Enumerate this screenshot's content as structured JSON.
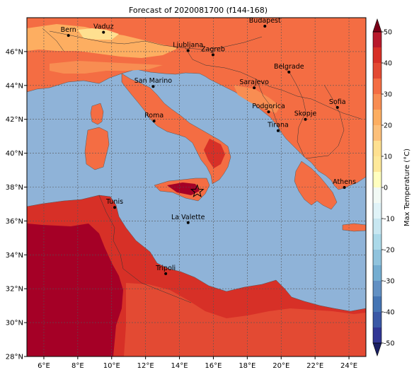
{
  "figure": {
    "title": "Forecast of 2020081700 (f144-168)"
  },
  "map": {
    "lon_range": [
      5,
      25
    ],
    "lat_range": [
      28,
      48
    ],
    "lon_ticks": [
      {
        "value": 6,
        "label": "6°E"
      },
      {
        "value": 8,
        "label": "8°E"
      },
      {
        "value": 10,
        "label": "10°E"
      },
      {
        "value": 12,
        "label": "12°E"
      },
      {
        "value": 14,
        "label": "14°E"
      },
      {
        "value": 16,
        "label": "16°E"
      },
      {
        "value": 18,
        "label": "18°E"
      },
      {
        "value": 20,
        "label": "20°E"
      },
      {
        "value": 22,
        "label": "22°E"
      },
      {
        "value": 24,
        "label": "24°E"
      }
    ],
    "lat_ticks": [
      {
        "value": 28,
        "label": "28°N"
      },
      {
        "value": 30,
        "label": "30°N"
      },
      {
        "value": 32,
        "label": "32°N"
      },
      {
        "value": 34,
        "label": "34°N"
      },
      {
        "value": 36,
        "label": "36°N"
      },
      {
        "value": 38,
        "label": "38°N"
      },
      {
        "value": 40,
        "label": "40°N"
      },
      {
        "value": 42,
        "label": "42°N"
      },
      {
        "value": 44,
        "label": "44°N"
      },
      {
        "value": 46,
        "label": "46°N"
      }
    ],
    "gridlines": true,
    "sea_color": "#8fb3d8",
    "cities": [
      {
        "name": "Bern",
        "lon": 7.45,
        "lat": 46.95
      },
      {
        "name": "Vaduz",
        "lon": 9.52,
        "lat": 47.14
      },
      {
        "name": "Budapest",
        "lon": 19.04,
        "lat": 47.5
      },
      {
        "name": "Ljubljana",
        "lon": 14.51,
        "lat": 46.06
      },
      {
        "name": "Zagreb",
        "lon": 15.98,
        "lat": 45.81
      },
      {
        "name": "Belgrade",
        "lon": 20.46,
        "lat": 44.79
      },
      {
        "name": "San Marino",
        "lon": 12.45,
        "lat": 43.94
      },
      {
        "name": "Sarajevo",
        "lon": 18.41,
        "lat": 43.86
      },
      {
        "name": "Sofia",
        "lon": 23.32,
        "lat": 42.7
      },
      {
        "name": "Podgorica",
        "lon": 19.26,
        "lat": 42.44
      },
      {
        "name": "Skopje",
        "lon": 21.43,
        "lat": 42.0
      },
      {
        "name": "Roma",
        "lon": 12.5,
        "lat": 41.9
      },
      {
        "name": "Tirana",
        "lon": 19.82,
        "lat": 41.33
      },
      {
        "name": "Athens",
        "lon": 23.73,
        "lat": 37.98
      },
      {
        "name": "Tunis",
        "lon": 10.18,
        "lat": 36.8
      },
      {
        "name": "La Valette",
        "lon": 14.51,
        "lat": 35.9
      },
      {
        "name": "Tripoli",
        "lon": 13.19,
        "lat": 32.89
      }
    ],
    "marker": {
      "symbol": "star",
      "lon": 15.05,
      "lat": 37.75
    }
  },
  "colorbar": {
    "label": "Max Temperature (°C)",
    "min": -50,
    "max": 50,
    "extend": "both",
    "ticks": [
      "-50",
      "-40",
      "-30",
      "-20",
      "-10",
      "0",
      "10",
      "20",
      "30",
      "40",
      "50"
    ],
    "levels": [
      -50,
      -45,
      -40,
      -35,
      -30,
      -25,
      -20,
      -15,
      -10,
      -5,
      0,
      5,
      10,
      15,
      20,
      25,
      30,
      35,
      40,
      45,
      50
    ],
    "colors": [
      "#313695",
      "#3a58a6",
      "#4575b4",
      "#6290c3",
      "#74add1",
      "#90c3dd",
      "#abd9e9",
      "#c8e7f1",
      "#e0f3f8",
      "#f2faf5",
      "#ffffbf",
      "#fee99a",
      "#fee090",
      "#fdc07a",
      "#fdae61",
      "#f88d52",
      "#f46d43",
      "#e34a33",
      "#d73027",
      "#b81a2c",
      "#a50026"
    ],
    "under_color": "#1a1f63",
    "over_color": "#7a0017"
  }
}
